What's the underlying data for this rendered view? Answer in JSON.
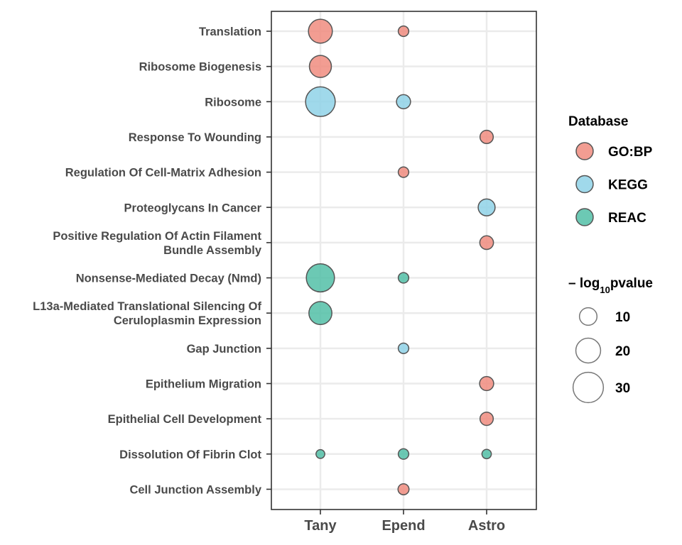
{
  "chart_data": {
    "type": "scatter",
    "x_categories": [
      "Tany",
      "Epend",
      "Astro"
    ],
    "y_categories": [
      [
        "Translation"
      ],
      [
        "Ribosome Biogenesis"
      ],
      [
        "Ribosome"
      ],
      [
        "Response To Wounding"
      ],
      [
        "Regulation Of Cell-Matrix Adhesion"
      ],
      [
        "Proteoglycans In Cancer"
      ],
      [
        "Positive Regulation Of Actin Filament",
        "Bundle Assembly"
      ],
      [
        "Nonsense-Mediated Decay (Nmd)"
      ],
      [
        "L13a-Mediated Translational Silencing Of",
        "Ceruloplasmin Expression"
      ],
      [
        "Gap Junction"
      ],
      [
        "Epithelium Migration"
      ],
      [
        "Epithelial Cell Development"
      ],
      [
        "Dissolution Of Fibrin Clot"
      ],
      [
        "Cell Junction Assembly"
      ]
    ],
    "points": [
      {
        "x": "Tany",
        "y": 0,
        "database": "GO:BP",
        "neg_log10_pvalue": 26
      },
      {
        "x": "Epend",
        "y": 0,
        "database": "GO:BP",
        "neg_log10_pvalue": 5
      },
      {
        "x": "Tany",
        "y": 1,
        "database": "GO:BP",
        "neg_log10_pvalue": 22
      },
      {
        "x": "Tany",
        "y": 2,
        "database": "KEGG",
        "neg_log10_pvalue": 40
      },
      {
        "x": "Epend",
        "y": 2,
        "database": "KEGG",
        "neg_log10_pvalue": 9
      },
      {
        "x": "Astro",
        "y": 3,
        "database": "GO:BP",
        "neg_log10_pvalue": 8
      },
      {
        "x": "Epend",
        "y": 4,
        "database": "GO:BP",
        "neg_log10_pvalue": 5
      },
      {
        "x": "Astro",
        "y": 5,
        "database": "KEGG",
        "neg_log10_pvalue": 13
      },
      {
        "x": "Astro",
        "y": 6,
        "database": "GO:BP",
        "neg_log10_pvalue": 8.5
      },
      {
        "x": "Tany",
        "y": 7,
        "database": "REAC",
        "neg_log10_pvalue": 36
      },
      {
        "x": "Epend",
        "y": 7,
        "database": "REAC",
        "neg_log10_pvalue": 5
      },
      {
        "x": "Tany",
        "y": 8,
        "database": "REAC",
        "neg_log10_pvalue": 24
      },
      {
        "x": "Epend",
        "y": 9,
        "database": "KEGG",
        "neg_log10_pvalue": 5
      },
      {
        "x": "Astro",
        "y": 10,
        "database": "GO:BP",
        "neg_log10_pvalue": 9
      },
      {
        "x": "Astro",
        "y": 11,
        "database": "GO:BP",
        "neg_log10_pvalue": 8
      },
      {
        "x": "Tany",
        "y": 12,
        "database": "REAC",
        "neg_log10_pvalue": 3.5
      },
      {
        "x": "Epend",
        "y": 12,
        "database": "REAC",
        "neg_log10_pvalue": 5
      },
      {
        "x": "Astro",
        "y": 12,
        "database": "REAC",
        "neg_log10_pvalue": 4
      },
      {
        "x": "Epend",
        "y": 13,
        "database": "GO:BP",
        "neg_log10_pvalue": 5.5
      }
    ],
    "legend_color": {
      "title": "Database",
      "entries": [
        {
          "label": "GO:BP",
          "color": "#f08c7f"
        },
        {
          "label": "KEGG",
          "color": "#8fd2e8"
        },
        {
          "label": "REAC",
          "color": "#52bfa7"
        }
      ]
    },
    "legend_size": {
      "title_prefix": "– log",
      "title_sub": "10",
      "title_suffix": "pvalue",
      "entries": [
        10,
        20,
        30
      ]
    },
    "grid": true,
    "legend_position": "right"
  }
}
